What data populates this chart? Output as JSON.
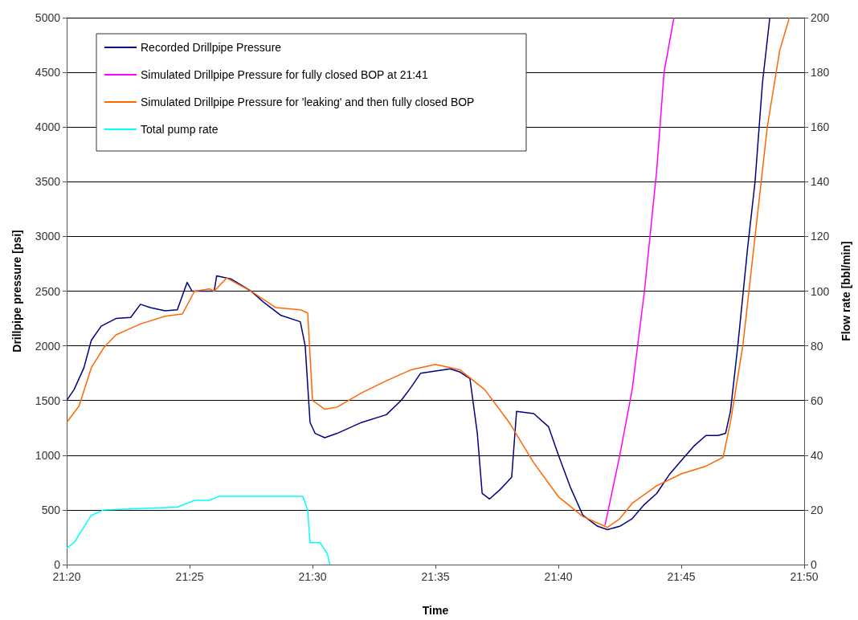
{
  "chart_data": {
    "type": "line",
    "xlabel": "Time",
    "ylabel": "Drillpipe pressure [psi]",
    "y2label": "Flow rate [bbl/min]",
    "xlim": [
      21.3333,
      21.8333
    ],
    "xticks": [
      {
        "value": 21.3333,
        "label": "21:20"
      },
      {
        "value": 21.4167,
        "label": "21:25"
      },
      {
        "value": 21.5,
        "label": "21:30"
      },
      {
        "value": 21.5833,
        "label": "21:35"
      },
      {
        "value": 21.6667,
        "label": "21:40"
      },
      {
        "value": 21.75,
        "label": "21:45"
      },
      {
        "value": 21.8333,
        "label": "21:50"
      }
    ],
    "ylim": [
      0,
      5000
    ],
    "yticks": [
      0,
      500,
      1000,
      1500,
      2000,
      2500,
      3000,
      3500,
      4000,
      4500,
      5000
    ],
    "y2lim": [
      0,
      200
    ],
    "y2ticks": [
      0,
      20,
      40,
      60,
      80,
      100,
      120,
      140,
      160,
      180,
      200
    ],
    "grid": "y",
    "legend": "top left",
    "marker": "none",
    "line_style": "solid",
    "series": [
      {
        "name": "Recorded Drillpipe Pressure",
        "color": "#000080",
        "x": [
          21.3333,
          21.3383,
          21.345,
          21.35,
          21.3567,
          21.3667,
          21.3767,
          21.3833,
          21.39,
          21.4,
          21.4083,
          21.415,
          21.4183,
          21.4267,
          21.4333,
          21.435,
          21.445,
          21.4583,
          21.4667,
          21.4783,
          21.4917,
          21.495,
          21.4983,
          21.5017,
          21.5083,
          21.5167,
          21.5333,
          21.55,
          21.56,
          21.5667,
          21.5733,
          21.5833,
          21.5933,
          21.6,
          21.6067,
          21.6117,
          21.615,
          21.62,
          21.6267,
          21.6317,
          21.635,
          21.6383,
          21.65,
          21.66,
          21.6667,
          21.675,
          21.6833,
          21.6933,
          21.7,
          21.7083,
          21.7167,
          21.725,
          21.7333,
          21.7417,
          21.75,
          21.7583,
          21.7667,
          21.775,
          21.78,
          21.7833,
          21.7883,
          21.795,
          21.8,
          21.805,
          21.81
        ],
        "values": [
          1500,
          1600,
          1800,
          2050,
          2180,
          2250,
          2260,
          2380,
          2350,
          2320,
          2330,
          2580,
          2500,
          2500,
          2500,
          2640,
          2610,
          2500,
          2400,
          2280,
          2220,
          2000,
          1300,
          1200,
          1160,
          1200,
          1300,
          1370,
          1500,
          1620,
          1750,
          1770,
          1790,
          1760,
          1700,
          1200,
          650,
          600,
          680,
          750,
          800,
          1400,
          1380,
          1260,
          1000,
          700,
          450,
          350,
          320,
          350,
          420,
          550,
          650,
          820,
          950,
          1080,
          1180,
          1180,
          1200,
          1400,
          2000,
          2900,
          3500,
          4400,
          5000
        ]
      },
      {
        "name": "Simulated Drillpipe Pressure for fully closed BOP at 21:41",
        "color": "#ff00ff",
        "x": [
          21.6983,
          21.7083,
          21.7167,
          21.725,
          21.7333,
          21.7383,
          21.745
        ],
        "values": [
          360,
          1000,
          1600,
          2500,
          3600,
          4500,
          5000
        ]
      },
      {
        "name": "Simulated Drillpipe Pressure for 'leaking' and then fully closed BOP",
        "color": "#ff6600",
        "x": [
          21.3333,
          21.3417,
          21.35,
          21.3583,
          21.3667,
          21.375,
          21.3833,
          21.4,
          21.4117,
          21.42,
          21.43,
          21.4333,
          21.4417,
          21.4583,
          21.475,
          21.4917,
          21.4967,
          21.5,
          21.5083,
          21.5167,
          21.5333,
          21.55,
          21.5667,
          21.5833,
          21.6,
          21.6167,
          21.6333,
          21.65,
          21.6667,
          21.6833,
          21.7,
          21.7083,
          21.7167,
          21.7333,
          21.75,
          21.7667,
          21.7783,
          21.7833,
          21.7917,
          21.8,
          21.8083,
          21.8167,
          21.8233
        ],
        "values": [
          1300,
          1450,
          1800,
          1980,
          2100,
          2150,
          2200,
          2270,
          2290,
          2500,
          2520,
          2500,
          2620,
          2500,
          2350,
          2330,
          2300,
          1500,
          1420,
          1440,
          1570,
          1680,
          1780,
          1830,
          1780,
          1600,
          1300,
          930,
          620,
          440,
          340,
          420,
          560,
          720,
          830,
          900,
          980,
          1300,
          2000,
          3000,
          4000,
          4700,
          5000
        ]
      },
      {
        "name": "Total pump rate",
        "color": "#00ffff",
        "axis": "y2",
        "x": [
          21.3333,
          21.3383,
          21.35,
          21.3583,
          21.3833,
          21.4083,
          21.42,
          21.43,
          21.4367,
          21.4933,
          21.4967,
          21.4983,
          21.505,
          21.51,
          21.5117
        ],
        "values": [
          6,
          8,
          18,
          20,
          20.5,
          21,
          23.5,
          23.5,
          25,
          25,
          20,
          8,
          8,
          4,
          0
        ]
      }
    ]
  }
}
